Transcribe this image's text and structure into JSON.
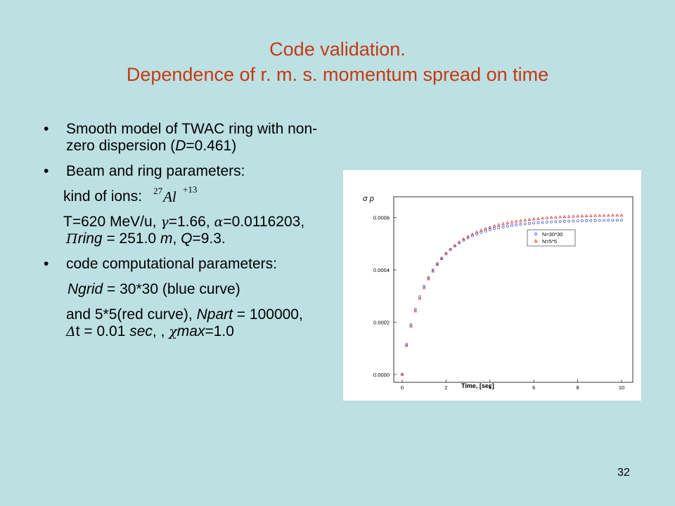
{
  "title": {
    "line1": "Code validation.",
    "line2": "Dependence of r. m. s. momentum spread on time"
  },
  "bullets": {
    "b1_text": "Smooth model of TWAC ring with non-zero dispersion (",
    "b1_D": "D",
    "b1_tail": "=0.461)",
    "b2": "Beam and ring parameters:",
    "ions_label": "kind of ions:",
    "ion_mass": "27",
    "ion_symbol": "Al",
    "ion_charge": "+13",
    "params_T": "T=620 MeV/u, ",
    "gamma_sym": "γ",
    "params_gamma": "=1.66, ",
    "alpha_sym": "α",
    "params_alpha": "=0.0116203, ",
    "pi_sym": "Π",
    "params_ring": "ring",
    "params_ring_val": " = 251.0 ",
    "params_m": "m",
    "params_sep": ", ",
    "params_Q": "Q",
    "params_Q_val": "=9.3.",
    "b3": "code computational parameters:",
    "ngrid_label": "Ngrid",
    "ngrid_text": " = 30*30 (blue curve)",
    "npart_pre": "and  5*5(red curve), ",
    "npart_label": "Npart",
    "npart_mid": " = 100000, ",
    "delta_sym": "Δ",
    "dt_text": "t = 0.01 ",
    "sec": "sec",
    "dt_tail": ", ,",
    "chi_sym": "χ",
    "max_label": "max",
    "max_val": "=1.0"
  },
  "page_number": "32",
  "chart_data": {
    "type": "scatter",
    "ylabel": "σ p",
    "xlabel": "Time, [sec]",
    "xlim": [
      0,
      10
    ],
    "ylim": [
      -3e-05,
      0.00068
    ],
    "xticks": [
      "0",
      "2",
      "4",
      "6",
      "8",
      "10"
    ],
    "yticks": [
      "0.0000",
      "0.0002",
      "0.0004",
      "0.0006"
    ],
    "legend_position": "right",
    "series": [
      {
        "name": "N=30*30",
        "marker": "circle",
        "color": "#3a4fd0",
        "x_start": 0,
        "x_end": 10,
        "x_step": 0.2,
        "y_final": 0.000592,
        "tau": 1.22,
        "y0": 0
      },
      {
        "name": "N=5*5",
        "marker": "triangle",
        "color": "#d02828",
        "x_start": 0,
        "x_end": 10,
        "x_step": 0.2,
        "y_final": 0.000612,
        "tau": 1.34,
        "y0": 0
      }
    ]
  }
}
